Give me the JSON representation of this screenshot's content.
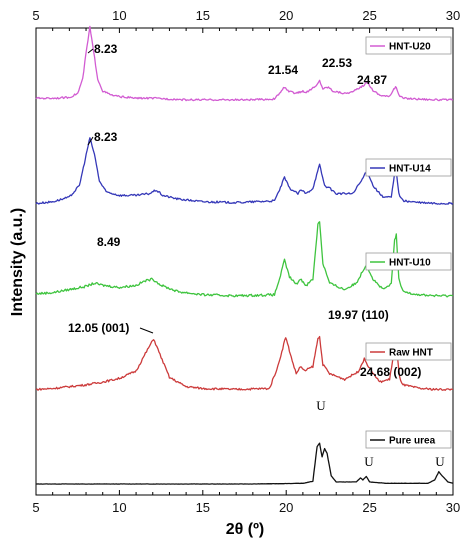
{
  "chart_data": {
    "type": "line",
    "xlabel": "2θ (º)",
    "ylabel": "Intensity (a.u.)",
    "xlim": [
      5,
      30
    ],
    "xticks": [
      5,
      10,
      15,
      20,
      25,
      30
    ],
    "xticks_top": [
      5,
      10,
      15,
      20,
      25,
      30
    ],
    "series": [
      {
        "name": "HNT-U20",
        "color": "#d25cd2",
        "offset": 4,
        "points": [
          [
            5.0,
            0.06
          ],
          [
            6.0,
            0.06
          ],
          [
            7.0,
            0.07
          ],
          [
            7.5,
            0.12
          ],
          [
            7.8,
            0.3
          ],
          [
            8.0,
            0.62
          ],
          [
            8.23,
            0.95
          ],
          [
            8.45,
            0.65
          ],
          [
            8.7,
            0.3
          ],
          [
            9.0,
            0.15
          ],
          [
            9.5,
            0.1
          ],
          [
            10,
            0.08
          ],
          [
            11,
            0.06
          ],
          [
            12,
            0.06
          ],
          [
            14,
            0.04
          ],
          [
            16,
            0.04
          ],
          [
            18,
            0.04
          ],
          [
            19.3,
            0.05
          ],
          [
            19.6,
            0.12
          ],
          [
            19.9,
            0.2
          ],
          [
            20.1,
            0.15
          ],
          [
            20.6,
            0.12
          ],
          [
            21.0,
            0.15
          ],
          [
            21.2,
            0.13
          ],
          [
            21.54,
            0.18
          ],
          [
            21.8,
            0.21
          ],
          [
            22.0,
            0.28
          ],
          [
            22.2,
            0.18
          ],
          [
            22.53,
            0.2
          ],
          [
            22.8,
            0.15
          ],
          [
            23.5,
            0.12
          ],
          [
            24.0,
            0.14
          ],
          [
            24.5,
            0.2
          ],
          [
            24.87,
            0.26
          ],
          [
            25.2,
            0.16
          ],
          [
            25.6,
            0.1
          ],
          [
            26.2,
            0.08
          ],
          [
            26.45,
            0.18
          ],
          [
            26.6,
            0.2
          ],
          [
            26.75,
            0.1
          ],
          [
            27,
            0.06
          ],
          [
            28,
            0.05
          ],
          [
            29,
            0.04
          ],
          [
            30,
            0.04
          ]
        ]
      },
      {
        "name": "HNT-U14",
        "color": "#3538b8",
        "offset": 3,
        "points": [
          [
            5.0,
            0.05
          ],
          [
            6.0,
            0.07
          ],
          [
            7.0,
            0.12
          ],
          [
            7.6,
            0.25
          ],
          [
            7.9,
            0.5
          ],
          [
            8.23,
            0.78
          ],
          [
            8.5,
            0.6
          ],
          [
            8.8,
            0.3
          ],
          [
            9.2,
            0.18
          ],
          [
            10,
            0.14
          ],
          [
            11,
            0.14
          ],
          [
            11.8,
            0.16
          ],
          [
            12.2,
            0.2
          ],
          [
            12.6,
            0.14
          ],
          [
            13.5,
            0.1
          ],
          [
            15,
            0.07
          ],
          [
            17,
            0.06
          ],
          [
            19.3,
            0.08
          ],
          [
            19.6,
            0.2
          ],
          [
            19.9,
            0.34
          ],
          [
            20.2,
            0.22
          ],
          [
            20.7,
            0.16
          ],
          [
            20.9,
            0.2
          ],
          [
            21.2,
            0.16
          ],
          [
            21.6,
            0.22
          ],
          [
            22.0,
            0.48
          ],
          [
            22.3,
            0.25
          ],
          [
            22.6,
            0.22
          ],
          [
            23.0,
            0.16
          ],
          [
            24.0,
            0.16
          ],
          [
            24.5,
            0.3
          ],
          [
            24.85,
            0.42
          ],
          [
            25.2,
            0.25
          ],
          [
            25.8,
            0.12
          ],
          [
            26.3,
            0.12
          ],
          [
            26.5,
            0.38
          ],
          [
            26.6,
            0.42
          ],
          [
            26.75,
            0.16
          ],
          [
            27,
            0.08
          ],
          [
            28,
            0.06
          ],
          [
            29,
            0.05
          ],
          [
            30,
            0.05
          ]
        ]
      },
      {
        "name": "HNT-U10",
        "color": "#3fc43f",
        "offset": 2,
        "points": [
          [
            5.0,
            0.06
          ],
          [
            6.0,
            0.07
          ],
          [
            7.0,
            0.1
          ],
          [
            8.0,
            0.13
          ],
          [
            8.49,
            0.16
          ],
          [
            9.0,
            0.14
          ],
          [
            10,
            0.12
          ],
          [
            11,
            0.14
          ],
          [
            11.5,
            0.18
          ],
          [
            12,
            0.2
          ],
          [
            12.5,
            0.14
          ],
          [
            13.5,
            0.08
          ],
          [
            15,
            0.05
          ],
          [
            17,
            0.04
          ],
          [
            19.3,
            0.05
          ],
          [
            19.6,
            0.2
          ],
          [
            19.9,
            0.38
          ],
          [
            20.2,
            0.22
          ],
          [
            20.6,
            0.15
          ],
          [
            20.85,
            0.2
          ],
          [
            21.2,
            0.14
          ],
          [
            21.6,
            0.2
          ],
          [
            21.9,
            0.72
          ],
          [
            22.0,
            0.75
          ],
          [
            22.2,
            0.35
          ],
          [
            22.6,
            0.16
          ],
          [
            23.5,
            0.1
          ],
          [
            24.2,
            0.16
          ],
          [
            24.8,
            0.34
          ],
          [
            25.2,
            0.2
          ],
          [
            25.8,
            0.1
          ],
          [
            26.3,
            0.15
          ],
          [
            26.5,
            0.58
          ],
          [
            26.6,
            0.62
          ],
          [
            26.75,
            0.2
          ],
          [
            27,
            0.08
          ],
          [
            28,
            0.05
          ],
          [
            29,
            0.04
          ],
          [
            30,
            0.04
          ]
        ]
      },
      {
        "name": "Raw HNT",
        "color": "#cc3b3b",
        "offset": 1,
        "points": [
          [
            5.0,
            0.05
          ],
          [
            6.0,
            0.06
          ],
          [
            7.0,
            0.08
          ],
          [
            8.0,
            0.1
          ],
          [
            9.0,
            0.13
          ],
          [
            10,
            0.17
          ],
          [
            11,
            0.25
          ],
          [
            11.5,
            0.42
          ],
          [
            12.05,
            0.6
          ],
          [
            12.5,
            0.4
          ],
          [
            13,
            0.18
          ],
          [
            14,
            0.08
          ],
          [
            15,
            0.06
          ],
          [
            17,
            0.05
          ],
          [
            19.0,
            0.06
          ],
          [
            19.5,
            0.3
          ],
          [
            19.97,
            0.62
          ],
          [
            20.3,
            0.4
          ],
          [
            20.6,
            0.22
          ],
          [
            20.85,
            0.3
          ],
          [
            21.1,
            0.25
          ],
          [
            21.6,
            0.3
          ],
          [
            21.9,
            0.6
          ],
          [
            22.0,
            0.62
          ],
          [
            22.2,
            0.32
          ],
          [
            22.6,
            0.22
          ],
          [
            23.5,
            0.16
          ],
          [
            24.3,
            0.24
          ],
          [
            24.68,
            0.38
          ],
          [
            25.0,
            0.28
          ],
          [
            25.6,
            0.13
          ],
          [
            26.2,
            0.16
          ],
          [
            26.5,
            0.5
          ],
          [
            26.6,
            0.52
          ],
          [
            26.8,
            0.18
          ],
          [
            27,
            0.1
          ],
          [
            28,
            0.06
          ],
          [
            29,
            0.05
          ],
          [
            30,
            0.05
          ]
        ]
      },
      {
        "name": "Pure urea",
        "color": "#111111",
        "offset": 0,
        "points": [
          [
            5.0,
            0.0
          ],
          [
            10,
            0.0
          ],
          [
            15,
            0.0
          ],
          [
            18,
            0.0
          ],
          [
            21.0,
            0.01
          ],
          [
            21.6,
            0.04
          ],
          [
            21.85,
            0.55
          ],
          [
            22.0,
            0.6
          ],
          [
            22.15,
            0.4
          ],
          [
            22.3,
            0.52
          ],
          [
            22.45,
            0.45
          ],
          [
            22.7,
            0.12
          ],
          [
            23.0,
            0.03
          ],
          [
            24.2,
            0.03
          ],
          [
            24.45,
            0.09
          ],
          [
            24.6,
            0.06
          ],
          [
            24.8,
            0.11
          ],
          [
            25.0,
            0.03
          ],
          [
            26,
            0.01
          ],
          [
            28.5,
            0.01
          ],
          [
            28.9,
            0.06
          ],
          [
            29.15,
            0.18
          ],
          [
            29.35,
            0.12
          ],
          [
            29.7,
            0.03
          ],
          [
            30,
            0.01
          ]
        ]
      }
    ],
    "annotations": [
      {
        "text": "8.23",
        "x": 8.23,
        "series": "HNT-U20"
      },
      {
        "text": "21.54",
        "x": 21.54,
        "series": "HNT-U20"
      },
      {
        "text": "22.53",
        "x": 22.53,
        "series": "HNT-U20"
      },
      {
        "text": "24.87",
        "x": 24.87,
        "series": "HNT-U20"
      },
      {
        "text": "8.23",
        "x": 8.23,
        "series": "HNT-U14"
      },
      {
        "text": "8.49",
        "x": 8.49,
        "series": "HNT-U10"
      },
      {
        "text": "12.05 (001)",
        "x": 12.05,
        "series": "Raw HNT"
      },
      {
        "text": "19.97 (110)",
        "x": 19.97,
        "series": "Raw HNT"
      },
      {
        "text": "24.68 (002)",
        "x": 24.68,
        "series": "Raw HNT"
      },
      {
        "text": "U",
        "x": 22.0,
        "series": "Pure urea"
      },
      {
        "text": "U",
        "x": 24.8,
        "series": "Pure urea"
      },
      {
        "text": "U",
        "x": 29.15,
        "series": "Pure urea"
      }
    ],
    "legend_placement": "right of each trace",
    "grid": false
  }
}
